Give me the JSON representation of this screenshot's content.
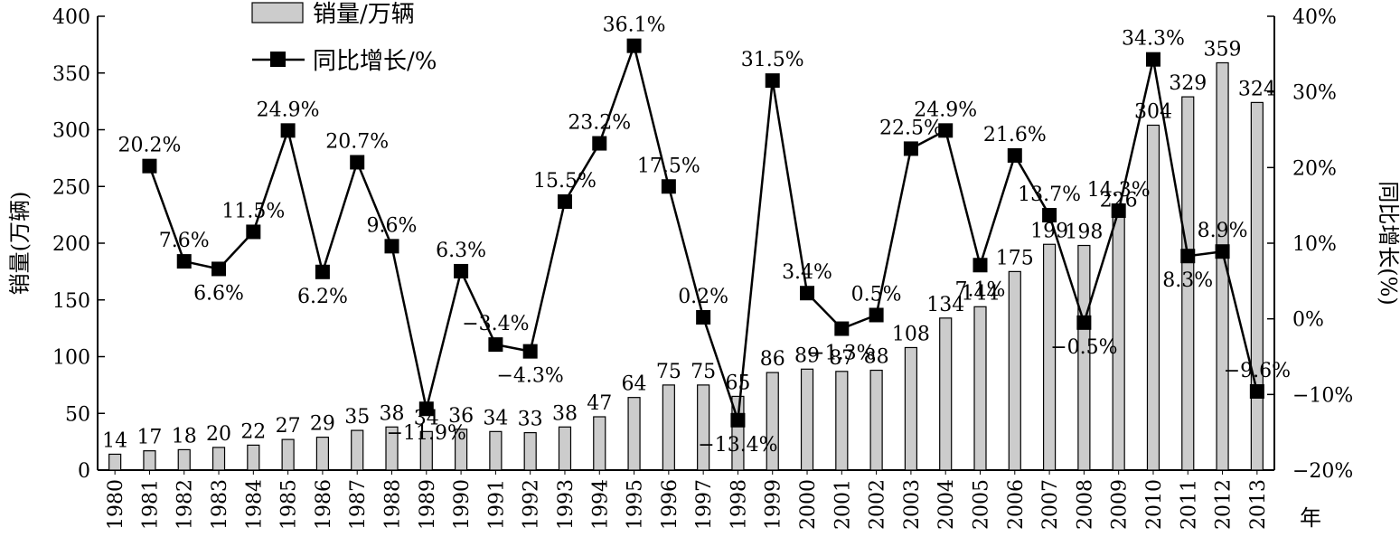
{
  "chart_data": {
    "type": "bar+line",
    "categories": [
      "1980",
      "1981",
      "1982",
      "1983",
      "1984",
      "1985",
      "1986",
      "1987",
      "1988",
      "1989",
      "1990",
      "1991",
      "1992",
      "1993",
      "1994",
      "1995",
      "1996",
      "1997",
      "1998",
      "1999",
      "2000",
      "2001",
      "2002",
      "2003",
      "2004",
      "2005",
      "2006",
      "2007",
      "2008",
      "2009",
      "2010",
      "2011",
      "2012",
      "2013"
    ],
    "series": [
      {
        "name": "销量/万辆",
        "type": "bar",
        "axis": "left",
        "values": [
          14,
          17,
          18,
          20,
          22,
          27,
          29,
          35,
          38,
          34,
          36,
          34,
          33,
          38,
          47,
          64,
          75,
          75,
          65,
          86,
          89,
          87,
          88,
          108,
          134,
          144,
          175,
          199,
          198,
          226,
          304,
          329,
          359,
          324
        ],
        "labels": [
          "14",
          "17",
          "18",
          "20",
          "22",
          "27",
          "29",
          "35",
          "38",
          "34",
          "36",
          "34",
          "33",
          "38",
          "47",
          "64",
          "75",
          "75",
          "65",
          "86",
          "89",
          "87",
          "88",
          "108",
          "134",
          "144",
          "175",
          "199",
          "198",
          "226",
          "304",
          "329",
          "359",
          "324"
        ],
        "color": "#cccccc"
      },
      {
        "name": "同比增长/%",
        "type": "line",
        "axis": "right",
        "values": [
          null,
          20.2,
          7.6,
          6.6,
          11.5,
          24.9,
          6.2,
          20.7,
          9.6,
          -11.9,
          6.3,
          -3.4,
          -4.3,
          15.5,
          23.2,
          36.1,
          17.5,
          0.2,
          -13.4,
          31.5,
          3.4,
          -1.3,
          0.5,
          22.5,
          24.9,
          7.1,
          21.6,
          13.7,
          -0.5,
          14.3,
          34.3,
          8.3,
          8.9,
          -9.6
        ],
        "labels": [
          null,
          "20.2%",
          "7.6%",
          "6.6%",
          "11.5%",
          "24.9%",
          "6.2%",
          "20.7%",
          "9.6%",
          "−11.9%",
          "6.3%",
          "−3.4%",
          "−4.3%",
          "15.5%",
          "23.2%",
          "36.1%",
          "17.5%",
          "0.2%",
          "−13.4%",
          "31.5%",
          "3.4%",
          "−1.3%",
          "0.5%",
          "22.5%",
          "24.9%",
          "7.1%",
          "21.6%",
          "13.7%",
          "−0.5%",
          "14.3%",
          "34.3%",
          "8.3%",
          "8.9%",
          "−9.6%"
        ],
        "color": "#000000"
      }
    ],
    "yleft": {
      "label": "销量(万辆)",
      "ylim": [
        0,
        400
      ],
      "ticks": [
        "0",
        "50",
        "100",
        "150",
        "200",
        "250",
        "300",
        "350",
        "400"
      ]
    },
    "yright": {
      "label": "同比增长(%)",
      "ylim": [
        -20,
        40
      ],
      "ticks": [
        "−20%",
        "−10%",
        "0%",
        "10%",
        "20%",
        "30%",
        "40%"
      ]
    },
    "xlabel": "年",
    "grid": false,
    "legend": "top-left"
  }
}
